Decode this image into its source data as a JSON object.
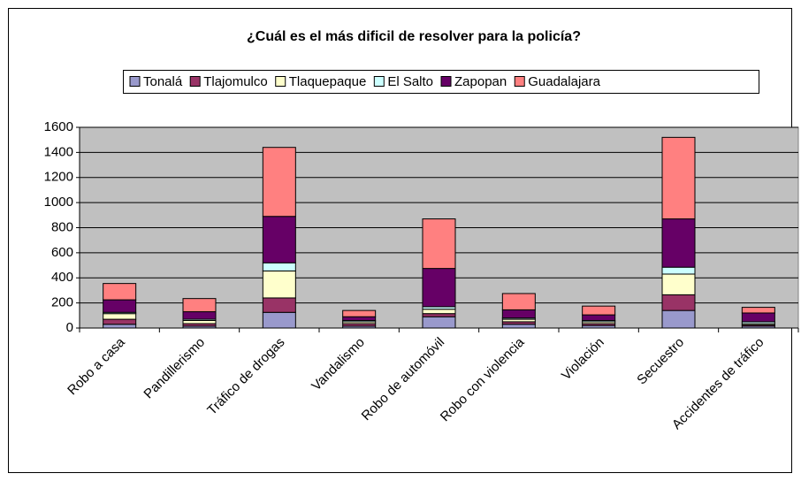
{
  "chart_data": {
    "type": "bar",
    "stacked": true,
    "title": "¿Cuál es el más dificil de resolver para la policía?",
    "categories": [
      "Robo a casa",
      "Pandillerismo",
      "Tráfico de drogas",
      "Vandalismo",
      "Robo de automóvil",
      "Robo con violencia",
      "Violación",
      "Secuestro",
      "Accidentes de tráfico"
    ],
    "series": [
      {
        "name": "Tonalá",
        "color": "#9999cc",
        "values": [
          30,
          15,
          125,
          15,
          90,
          30,
          20,
          140,
          15
        ]
      },
      {
        "name": "Tlajomulco",
        "color": "#993366",
        "values": [
          40,
          20,
          115,
          20,
          25,
          20,
          15,
          125,
          10
        ]
      },
      {
        "name": "Tlaquepaque",
        "color": "#ffffcc",
        "values": [
          45,
          25,
          215,
          15,
          35,
          20,
          15,
          165,
          10
        ]
      },
      {
        "name": "El Salto",
        "color": "#ccffff",
        "values": [
          10,
          10,
          65,
          10,
          20,
          10,
          10,
          55,
          15
        ]
      },
      {
        "name": "Zapopan",
        "color": "#660066",
        "values": [
          100,
          60,
          370,
          30,
          305,
          65,
          45,
          385,
          70
        ]
      },
      {
        "name": "Guadalajara",
        "color": "#ff8080",
        "values": [
          130,
          105,
          550,
          50,
          395,
          130,
          70,
          650,
          45
        ]
      }
    ],
    "ylim": [
      0,
      1600
    ],
    "yticks": [
      0,
      200,
      400,
      600,
      800,
      1000,
      1200,
      1400,
      1600
    ],
    "grid": true,
    "legend": "top"
  }
}
